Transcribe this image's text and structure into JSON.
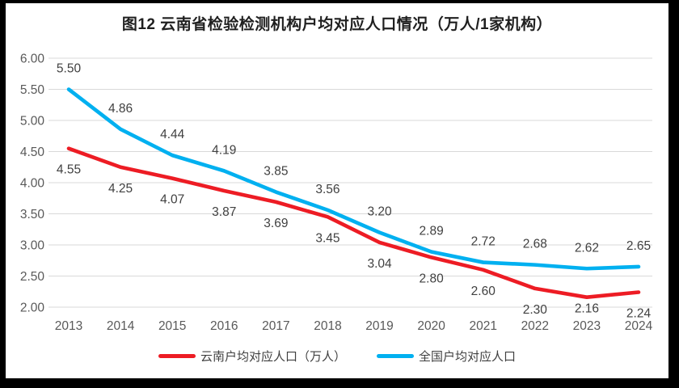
{
  "title": "图12  云南省检验检测机构户均对应人口情况（万人/1家机构）",
  "colors": {
    "frame_border": "#000000",
    "background": "#ffffff",
    "gridline": "#d9d9d9",
    "axis_text": "#595959",
    "data_label_text": "#404040",
    "title_text": "#1f1f1f",
    "yunnan_red": "#ed1c24",
    "national_blue": "#00b0f0"
  },
  "chart_data": {
    "type": "line",
    "title": "图12  云南省检验检测机构户均对应人口情况（万人/1家机构）",
    "categories": [
      "2013",
      "2014",
      "2015",
      "2016",
      "2017",
      "2018",
      "2019",
      "2020",
      "2021",
      "2022",
      "2023",
      "2024"
    ],
    "series": [
      {
        "name": "云南户均对应人口（万人）",
        "color": "#ed1c24",
        "label_position": "below",
        "values": [
          4.55,
          4.25,
          4.07,
          3.87,
          3.69,
          3.45,
          3.04,
          2.8,
          2.6,
          2.3,
          2.16,
          2.24
        ]
      },
      {
        "name": "全国户均对应人口",
        "color": "#00b0f0",
        "label_position": "above",
        "values": [
          5.5,
          4.86,
          4.44,
          4.19,
          3.85,
          3.56,
          3.2,
          2.89,
          2.72,
          2.68,
          2.62,
          2.65
        ]
      }
    ],
    "xlabel": "",
    "ylabel": "",
    "ylim": [
      2.0,
      6.0
    ],
    "ytick_step": 0.5,
    "yticks": [
      6.0,
      5.5,
      5.0,
      4.5,
      4.0,
      3.5,
      3.0,
      2.5,
      2.0
    ],
    "ytick_labels": [
      "6.00",
      "5.50",
      "5.00",
      "4.50",
      "4.00",
      "3.50",
      "3.00",
      "2.50",
      "2.00"
    ],
    "grid": true,
    "data_labels": true,
    "legend_position": "bottom"
  },
  "legend": {
    "items": [
      {
        "label": "云南户均对应人口（万人）",
        "color": "#ed1c24"
      },
      {
        "label": "全国户均对应人口",
        "color": "#00b0f0"
      }
    ]
  }
}
